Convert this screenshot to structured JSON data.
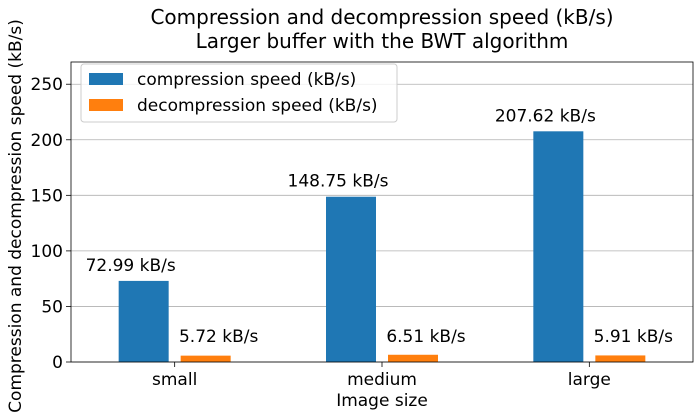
{
  "chart_data": {
    "type": "bar",
    "title_lines": [
      "Compression and decompression speed (kB/s)",
      "Larger buffer with the BWT algorithm"
    ],
    "xlabel": "Image size",
    "ylabel": "Compression and decompression speed (kB/s)",
    "categories": [
      "small",
      "medium",
      "large"
    ],
    "ylim": [
      0,
      270
    ],
    "yticks": [
      "0",
      "50",
      "100",
      "150",
      "200",
      "250"
    ],
    "ytick_values": [
      0,
      50,
      100,
      150,
      200,
      250
    ],
    "grid": "horizontal",
    "legend_position": "upper-left",
    "series": [
      {
        "name": "compression speed (kB/s)",
        "color": "#1f77b4",
        "values": [
          72.99,
          148.75,
          207.62
        ],
        "labels": [
          "72.99 kB/s",
          "148.75 kB/s",
          "207.62 kB/s"
        ]
      },
      {
        "name": "decompression speed (kB/s)",
        "color": "#ff7f0e",
        "values": [
          5.72,
          6.51,
          5.91
        ],
        "labels": [
          "5.72 kB/s",
          "6.51 kB/s",
          "5.91 kB/s"
        ]
      }
    ]
  }
}
